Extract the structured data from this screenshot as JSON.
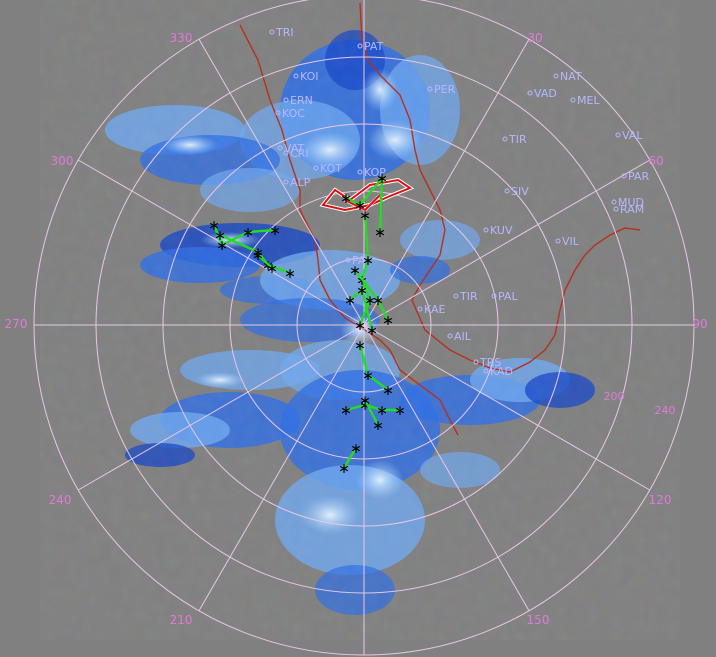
{
  "colors": {
    "background": "#808080",
    "range_ring": "#e6c8e6",
    "spoke": "#e6c8e6",
    "bearing_label": "#e07ad8",
    "town_label": "#b7b7ff",
    "coastline": "#b4321e",
    "echo_light": "#6fa8f0",
    "echo_mid": "#2e6ee6",
    "echo_dark": "#1446c8",
    "echo_pale": "#c8e6ff",
    "track_line": "#22dd22",
    "track_point": "#000000",
    "cell_outline_red": "#dd1111",
    "cell_outline_white": "#ffffff"
  },
  "bearing_labels": [
    {
      "deg": 0,
      "text": ""
    },
    {
      "deg": 30,
      "text": "30"
    },
    {
      "deg": 60,
      "text": "60"
    },
    {
      "deg": 90,
      "text": "90"
    },
    {
      "deg": 120,
      "text": "120"
    },
    {
      "deg": 150,
      "text": "150"
    },
    {
      "deg": 210,
      "text": "210"
    },
    {
      "deg": 240,
      "text": "240"
    },
    {
      "deg": 270,
      "text": "270"
    },
    {
      "deg": 300,
      "text": "300"
    },
    {
      "deg": 330,
      "text": "330"
    }
  ],
  "extra_labels": [
    {
      "text": "200",
      "slot": "a"
    },
    {
      "text": "240",
      "slot": "b"
    }
  ],
  "towns": [
    "TRI",
    "PAT",
    "NAT",
    "VAD",
    "MEL",
    "PER",
    "KOI",
    "ERN",
    "KOC",
    "TIR",
    "VAL",
    "VAT",
    "CRI",
    "KOT",
    "KOP",
    "PAR",
    "ALP",
    "SIV",
    "MUD",
    "RAM",
    "KUV",
    "VIL",
    "PAI",
    "TIR",
    "PAL",
    "KAE",
    "AIL",
    "TRS",
    "KAD"
  ],
  "icons": {
    "town_marker": "small-circle-icon",
    "track_point": "asterisk-marker-icon"
  }
}
